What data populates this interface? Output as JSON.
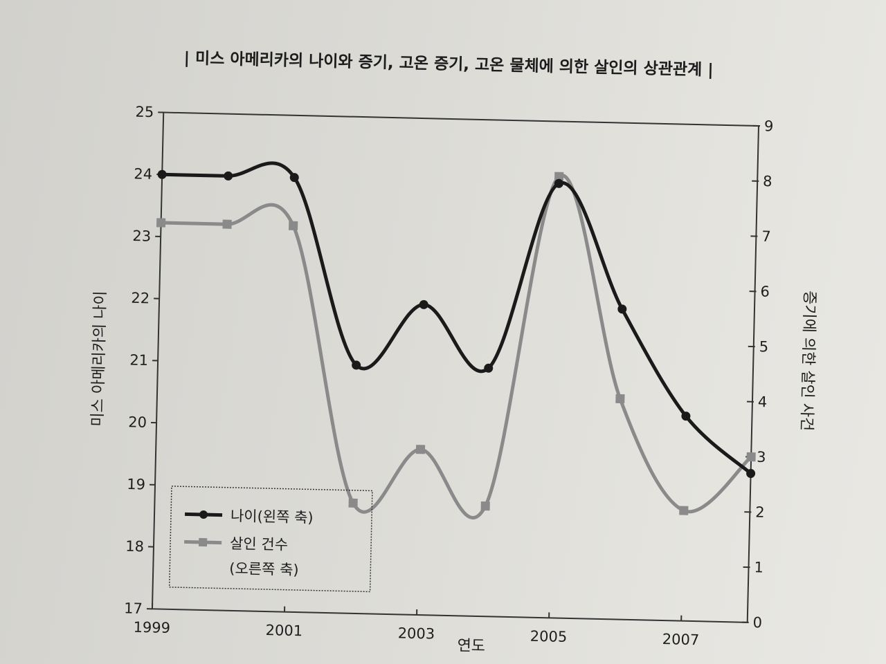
{
  "chart_data": {
    "type": "line",
    "title": "| 미스 아메리카의 나이와 증기, 고온 증기, 고온 물체에 의한 살인의 상관관계 |",
    "xlabel": "연도",
    "ylabel_left": "미스 아메리카의 나이",
    "ylabel_right": "증기에 의한 살인 사건",
    "x": [
      1999,
      2000,
      2001,
      2002,
      2003,
      2004,
      2005,
      2006,
      2007,
      2008
    ],
    "x_tick_labels": [
      "1999",
      "2001",
      "2003",
      "2005",
      "2007"
    ],
    "ylim_left": [
      17,
      25
    ],
    "ylim_right": [
      0,
      9
    ],
    "y_left_ticks": [
      "17",
      "18",
      "19",
      "20",
      "21",
      "22",
      "23",
      "24",
      "25"
    ],
    "y_right_ticks": [
      "0",
      "1",
      "2",
      "3",
      "4",
      "5",
      "6",
      "7",
      "8",
      "9"
    ],
    "series": [
      {
        "name": "나이(왼쪽 축)",
        "axis": "left",
        "marker": "circle",
        "color": "#1a1a1a",
        "values": [
          24,
          24,
          24,
          21,
          22,
          21,
          24,
          22,
          20.3,
          19.4
        ]
      },
      {
        "name": "살인 건수",
        "name_line2": "(오른쪽 축)",
        "axis": "right",
        "marker": "square",
        "color": "#8a8a8a",
        "values": [
          7,
          7,
          7,
          2,
          3,
          2,
          8,
          4,
          2,
          3
        ]
      }
    ],
    "legend_position": "bottom-left"
  }
}
